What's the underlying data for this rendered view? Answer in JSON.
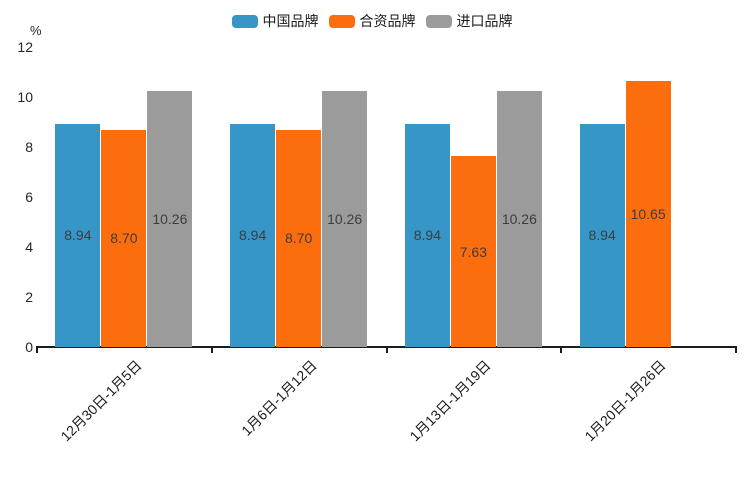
{
  "chart_data": {
    "type": "bar",
    "title": "",
    "unit_label": "%",
    "categories": [
      "12月30日-1月5日",
      "1月6日-1月12日",
      "1月13日-1月19日",
      "1月20日-1月26日"
    ],
    "series": [
      {
        "name": "中国品牌",
        "color": "#3696c8",
        "values": [
          8.94,
          8.94,
          8.94,
          8.94
        ]
      },
      {
        "name": "合资品牌",
        "color": "#fc6d0d",
        "values": [
          8.7,
          8.7,
          7.63,
          10.65
        ]
      },
      {
        "name": "进口品牌",
        "color": "#9b9b9b",
        "values": [
          10.26,
          10.26,
          10.26,
          null
        ]
      }
    ],
    "ylim": [
      0,
      12
    ],
    "yticks": [
      0,
      2,
      4,
      6,
      8,
      10,
      12
    ],
    "value_label_decimals": 2,
    "legend_position": "top",
    "grid": false,
    "value_labels": true,
    "value_label_color": "#3d3d3d",
    "axis_color": "#1c1c1c"
  }
}
